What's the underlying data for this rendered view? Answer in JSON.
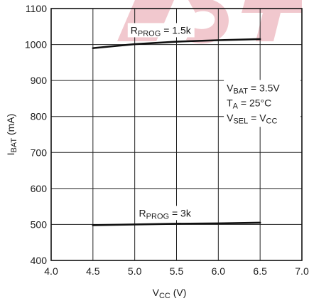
{
  "chart_data": {
    "type": "line",
    "xlabel": {
      "main": "V",
      "sub": "CC",
      "unit": " (V)"
    },
    "ylabel": {
      "main": "I",
      "sub": "BAT",
      "unit": " (mA)"
    },
    "xlim": [
      4.0,
      7.0
    ],
    "ylim": [
      400,
      1100
    ],
    "xticks": [
      4.0,
      4.5,
      5.0,
      5.5,
      6.0,
      6.5,
      7.0
    ],
    "xtick_labels": [
      "4.0",
      "4.5",
      "5.0",
      "5.5",
      "6.0",
      "6.5",
      "7.0"
    ],
    "yticks": [
      400,
      500,
      600,
      700,
      800,
      900,
      1000,
      1100
    ],
    "ytick_labels": [
      "400",
      "500",
      "600",
      "700",
      "800",
      "900",
      "1000",
      "1100"
    ],
    "grid": true,
    "series": [
      {
        "name": "RPROG = 1.5k",
        "label": {
          "main": "R",
          "sub": "PROG",
          "rest": " = 1.5k"
        },
        "x": [
          4.5,
          5.0,
          5.5,
          6.0,
          6.5
        ],
        "y": [
          990,
          1001,
          1008,
          1012,
          1015
        ],
        "color": "#111111"
      },
      {
        "name": "RPROG = 3k",
        "label": {
          "main": "R",
          "sub": "PROG",
          "rest": " = 3k"
        },
        "x": [
          4.5,
          5.0,
          5.5,
          6.0,
          6.5
        ],
        "y": [
          498,
          500,
          502,
          503,
          505
        ],
        "color": "#111111"
      }
    ],
    "conditions": [
      {
        "main": "V",
        "sub": "BAT",
        "rest": " = 3.5V"
      },
      {
        "main": "T",
        "sub": "A",
        "rest": " = 25°C"
      },
      {
        "main": "V",
        "sub": "SEL",
        "rest": " = V",
        "sub2": "CC"
      }
    ],
    "watermark_color": "#e8a3ad"
  }
}
